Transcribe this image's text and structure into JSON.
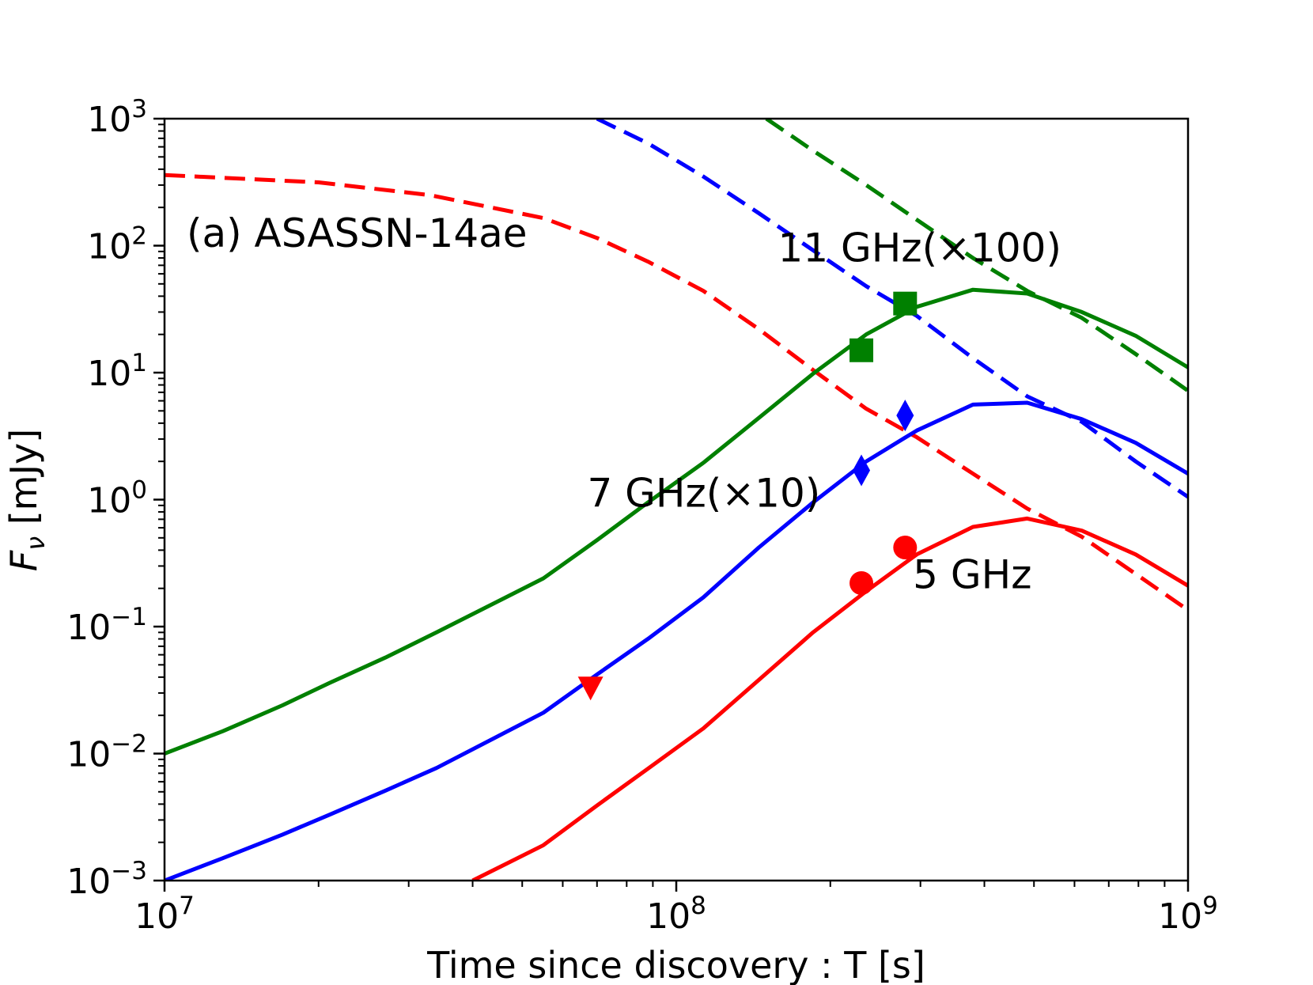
{
  "chart_data": {
    "type": "line",
    "title": "",
    "annotation": "(a) ASASSN-14ae",
    "xlabel": "Time since discovery : T [s]",
    "ylabel": {
      "main": "F",
      "sub": "ν",
      "unit": " [mJy]"
    },
    "xscale": "log",
    "yscale": "log",
    "xlim": [
      10000000,
      1000000000
    ],
    "ylim": [
      0.001,
      1000
    ],
    "x_tick_labels": [
      {
        "value": 10000000,
        "base": "10",
        "exp": "7"
      },
      {
        "value": 100000000,
        "base": "10",
        "exp": "8"
      },
      {
        "value": 1000000000,
        "base": "10",
        "exp": "9"
      }
    ],
    "y_tick_labels": [
      {
        "value": 0.001,
        "base": "10",
        "exp": "−3"
      },
      {
        "value": 0.01,
        "base": "10",
        "exp": "−2"
      },
      {
        "value": 0.1,
        "base": "10",
        "exp": "−1"
      },
      {
        "value": 1,
        "base": "10",
        "exp": "0"
      },
      {
        "value": 10,
        "base": "10",
        "exp": "1"
      },
      {
        "value": 100,
        "base": "10",
        "exp": "2"
      },
      {
        "value": 1000,
        "base": "10",
        "exp": "3"
      }
    ],
    "series_labels": [
      {
        "name": "11 GHz(×100)",
        "x": 158000000,
        "y": 75
      },
      {
        "name": "7 GHz(×10)",
        "x": 67000000,
        "y": 0.88
      },
      {
        "name": "5 GHz",
        "x": 290000000,
        "y": 0.2
      }
    ],
    "series": [
      {
        "name": "5 GHz model",
        "style": "solid",
        "color": "#ff0000",
        "x": [
          40000000,
          55000000,
          70000000,
          88000000,
          113000000,
          145000000,
          185000000,
          235000000,
          295000000,
          380000000,
          485000000,
          620000000,
          790000000,
          1000000000
        ],
        "y": [
          0.001,
          0.0019,
          0.0039,
          0.0076,
          0.0158,
          0.038,
          0.09,
          0.19,
          0.37,
          0.61,
          0.71,
          0.57,
          0.37,
          0.21
        ]
      },
      {
        "name": "5 GHz dashed",
        "style": "dashed",
        "color": "#ff0000",
        "x": [
          10000000,
          20000000,
          33000000,
          55000000,
          70000000,
          88000000,
          113000000,
          145000000,
          185000000,
          235000000,
          295000000,
          380000000,
          485000000,
          620000000,
          790000000,
          1000000000
        ],
        "y": [
          360,
          315,
          250,
          165,
          115,
          75,
          44,
          22,
          10.5,
          5.2,
          3.1,
          1.6,
          0.85,
          0.51,
          0.26,
          0.135
        ]
      },
      {
        "name": "7 GHz(×10) model",
        "style": "solid",
        "color": "#0000ff",
        "x": [
          10000000,
          13000000,
          17000000,
          21000000,
          27000000,
          34000000,
          55000000,
          70000000,
          88000000,
          113000000,
          145000000,
          185000000,
          235000000,
          295000000,
          380000000,
          485000000,
          620000000,
          790000000,
          1000000000
        ],
        "y": [
          0.001,
          0.0015,
          0.0023,
          0.0033,
          0.0051,
          0.0077,
          0.021,
          0.042,
          0.08,
          0.17,
          0.42,
          0.95,
          2.0,
          3.5,
          5.6,
          5.8,
          4.3,
          2.8,
          1.6
        ]
      },
      {
        "name": "7 GHz(×10) dashed",
        "style": "dashed",
        "color": "#0000ff",
        "x": [
          70000000,
          88000000,
          113000000,
          145000000,
          185000000,
          235000000,
          295000000,
          380000000,
          485000000,
          620000000,
          790000000,
          1000000000
        ],
        "y": [
          1000,
          640,
          350,
          180,
          92,
          48,
          28,
          13,
          6.5,
          4.1,
          2.0,
          1.05
        ]
      },
      {
        "name": "11 GHz(×100) model",
        "style": "solid",
        "color": "#008000",
        "x": [
          10000000,
          13000000,
          17000000,
          21000000,
          27000000,
          34000000,
          55000000,
          70000000,
          88000000,
          113000000,
          145000000,
          185000000,
          235000000,
          295000000,
          380000000,
          485000000,
          620000000,
          790000000,
          1000000000
        ],
        "y": [
          0.01,
          0.015,
          0.024,
          0.036,
          0.057,
          0.09,
          0.24,
          0.48,
          0.95,
          1.95,
          4.4,
          9.8,
          20,
          33,
          45,
          42,
          30,
          19.5,
          11
        ]
      },
      {
        "name": "11 GHz(×100) dashed",
        "style": "dashed",
        "color": "#008000",
        "x": [
          150000000,
          185000000,
          235000000,
          295000000,
          380000000,
          485000000,
          620000000,
          790000000,
          1000000000
        ],
        "y": [
          1000,
          560,
          300,
          160,
          80,
          44,
          27,
          14,
          7.2
        ]
      }
    ],
    "markers": [
      {
        "name": "5 GHz data point",
        "shape": "circle",
        "color": "#ff0000",
        "x": 230000000,
        "y": 0.22
      },
      {
        "name": "5 GHz data point",
        "shape": "circle",
        "color": "#ff0000",
        "x": 280000000,
        "y": 0.42
      },
      {
        "name": "5 GHz upper limit",
        "shape": "triangle-down",
        "color": "#ff0000",
        "x": 68000000,
        "y": 0.033
      },
      {
        "name": "7 GHz data point",
        "shape": "diamond",
        "color": "#0000ff",
        "x": 230000000,
        "y": 1.7
      },
      {
        "name": "7 GHz data point",
        "shape": "diamond",
        "color": "#0000ff",
        "x": 280000000,
        "y": 4.6
      },
      {
        "name": "11 GHz data point",
        "shape": "square",
        "color": "#008000",
        "x": 230000000,
        "y": 15
      },
      {
        "name": "11 GHz data point",
        "shape": "square",
        "color": "#008000",
        "x": 280000000,
        "y": 35
      }
    ]
  }
}
